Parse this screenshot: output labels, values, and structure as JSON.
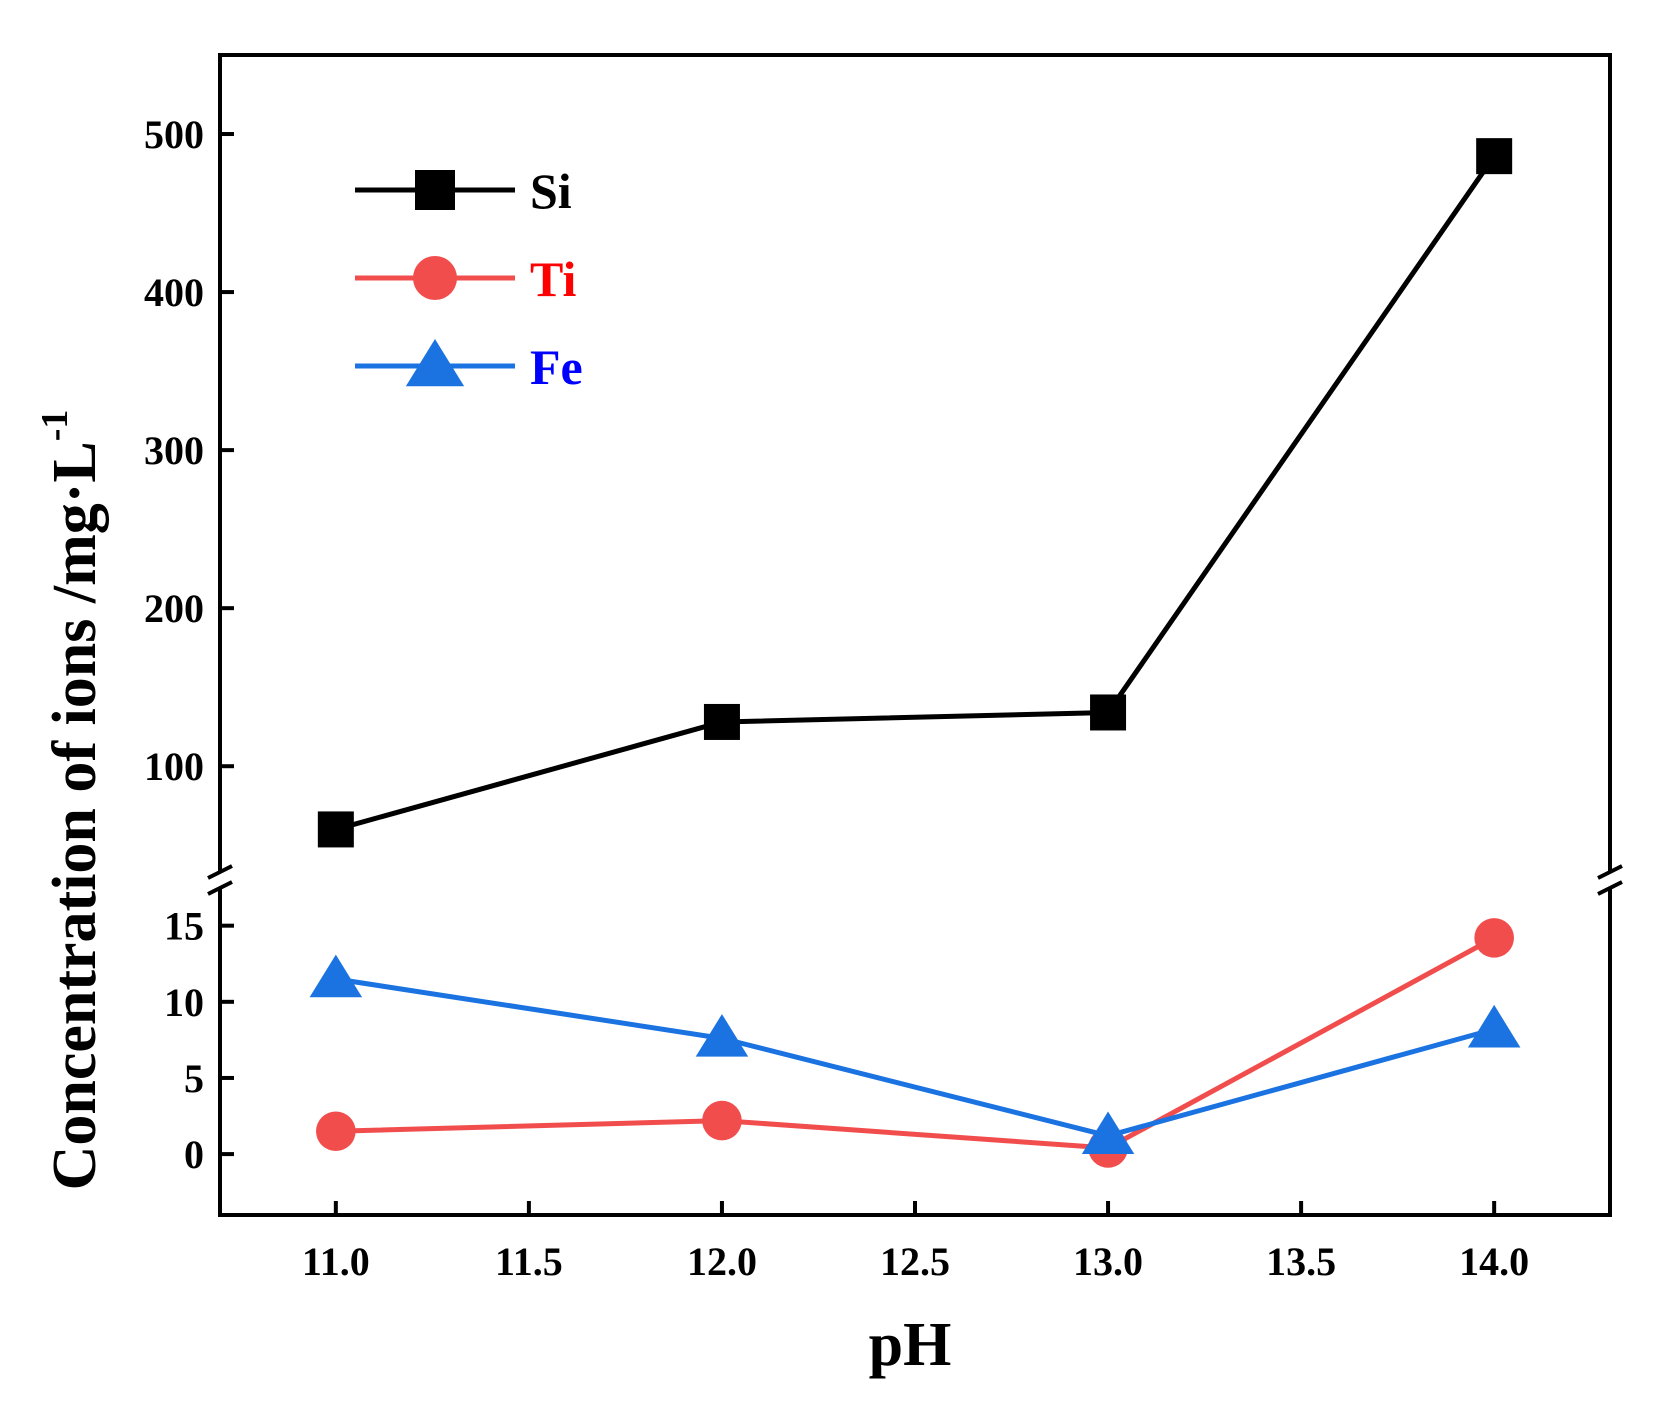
{
  "chart_data": {
    "type": "line",
    "title": "",
    "xlabel": "pH",
    "ylabel": "Concentration of ions /mg·L",
    "ylabel_superscript": "-1",
    "x": [
      11.0,
      12.0,
      13.0,
      14.0
    ],
    "xlim": [
      10.7,
      14.3
    ],
    "x_ticks": [
      "11.0",
      "11.5",
      "12.0",
      "12.5",
      "13.0",
      "13.5",
      "14.0"
    ],
    "broken_axis": true,
    "upper_segment": {
      "ylim": [
        28,
        550
      ],
      "y_ticks": [
        "100",
        "200",
        "300",
        "400",
        "500"
      ]
    },
    "lower_segment": {
      "ylim": [
        -4,
        18
      ],
      "y_ticks": [
        "0",
        "5",
        "10",
        "15"
      ]
    },
    "legend_position": "top-left",
    "series": [
      {
        "name": "Si",
        "values": [
          60,
          128,
          134,
          486
        ],
        "segment": "upper",
        "color": "#000000",
        "marker": "square",
        "label_color": "#000000"
      },
      {
        "name": "Ti",
        "values": [
          1.5,
          2.2,
          0.4,
          14.2
        ],
        "segment": "lower",
        "color": "#f24d4d",
        "marker": "circle",
        "label_color": "#ff0000"
      },
      {
        "name": "Fe",
        "values": [
          11.5,
          7.6,
          1.2,
          8.2
        ],
        "segment": "lower",
        "color": "#1a73e0",
        "marker": "triangle",
        "label_color": "#0000ff"
      }
    ]
  }
}
